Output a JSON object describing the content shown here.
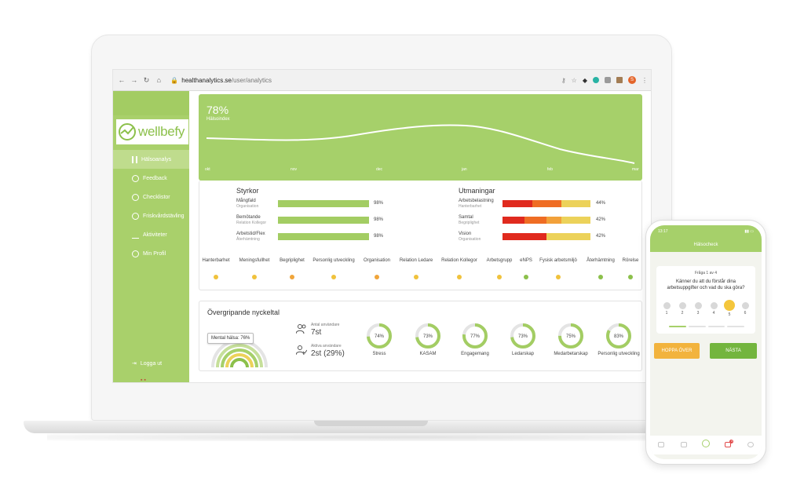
{
  "browser": {
    "url_host": "healthanalytics.se",
    "url_path": "/user/analytics",
    "avatar_letter": "S"
  },
  "sidebar": {
    "logo_text": "wellbefy",
    "items": [
      {
        "label": "Hälsoanalys",
        "icon": "bar-chart-icon",
        "active": true
      },
      {
        "label": "Feedback",
        "icon": "chat-bubble-icon"
      },
      {
        "label": "Checklistor",
        "icon": "check-circle-icon"
      },
      {
        "label": "Friskvårdstävling",
        "icon": "award-icon"
      },
      {
        "label": "Aktiviteter",
        "icon": "pulse-icon"
      },
      {
        "label": "Min Profil",
        "icon": "user-icon"
      }
    ],
    "logout_label": "Logga ut"
  },
  "hero": {
    "value": "78%",
    "label": "Hälsoindex",
    "months": [
      "okt",
      "nov",
      "dec",
      "jan",
      "feb",
      "mar"
    ]
  },
  "strengths": {
    "title": "Styrkor",
    "items": [
      {
        "name": "Mångfald",
        "sub": "Organisation",
        "value": "98%"
      },
      {
        "name": "Bemötande",
        "sub": "Relation Kollegor",
        "value": "98%"
      },
      {
        "name": "Arbetstid/Flex",
        "sub": "Återhämtning",
        "value": "98%"
      }
    ]
  },
  "challenges": {
    "title": "Utmaningar",
    "items": [
      {
        "name": "Arbetsbelastning",
        "sub": "Hanterbarhet",
        "value": "44%"
      },
      {
        "name": "Samtal",
        "sub": "Begriplighet",
        "value": "42%"
      },
      {
        "name": "Vision",
        "sub": "Organisation",
        "value": "42%"
      }
    ]
  },
  "topics": [
    {
      "label": "Hanterbarhet",
      "color": "#f0c23c"
    },
    {
      "label": "Meningsfullhet",
      "color": "#f0c23c"
    },
    {
      "label": "Begriplighet",
      "color": "#f0a53a"
    },
    {
      "label": "Personlig utveckling",
      "color": "#f0c23c"
    },
    {
      "label": "Organisation",
      "color": "#f0a53a"
    },
    {
      "label": "Relation Ledare",
      "color": "#f0c23c"
    },
    {
      "label": "Relation Kollegor",
      "color": "#f0c23c"
    },
    {
      "label": "Arbetsgrupp",
      "color": "#f0c23c"
    },
    {
      "label": "eNPS",
      "color": "#8cc04b"
    },
    {
      "label": "Fysisk arbetsmiljö",
      "color": "#f0c23c"
    },
    {
      "label": "Återhämtning",
      "color": "#8cc04b"
    },
    {
      "label": "Rörelse",
      "color": "#8cc04b"
    }
  ],
  "kpi": {
    "title": "Övergripande nyckeltal",
    "tooltip": "Mental hälsa: 76%",
    "users": [
      {
        "label": "Antal användare",
        "value": "7st",
        "icon": "users-icon"
      },
      {
        "label": "Aktiva användare",
        "value": "2st (29%)",
        "icon": "user-check-icon"
      }
    ],
    "donuts": [
      {
        "label": "Stress",
        "value": "74%",
        "pct": 74
      },
      {
        "label": "KASAM",
        "value": "73%",
        "pct": 73
      },
      {
        "label": "Engagemang",
        "value": "77%",
        "pct": 77
      },
      {
        "label": "Ledarskap",
        "value": "73%",
        "pct": 73
      },
      {
        "label": "Medarbetarskap",
        "value": "75%",
        "pct": 75
      },
      {
        "label": "Personlig utveckling",
        "value": "83%",
        "pct": 83
      }
    ]
  },
  "phone": {
    "time": "13:17",
    "header": "Hälsocheck",
    "counter": "Fråga 1 av 4",
    "question": "Känner du att du förstår dina arbetsuppgifter och vad du ska göra?",
    "scale": [
      "1",
      "2",
      "3",
      "4",
      "5",
      "6"
    ],
    "selected": 5,
    "skip_label": "HOPPA ÖVER",
    "next_label": "NÄSTA",
    "badge": "4"
  },
  "colors": {
    "brand_green": "#a6d06a",
    "bar_green": "#a3cd63",
    "red": "#e02a1e",
    "orange": "#ef6d24",
    "yellow": "#ecd25a",
    "light_yellow": "#e8de8a"
  }
}
